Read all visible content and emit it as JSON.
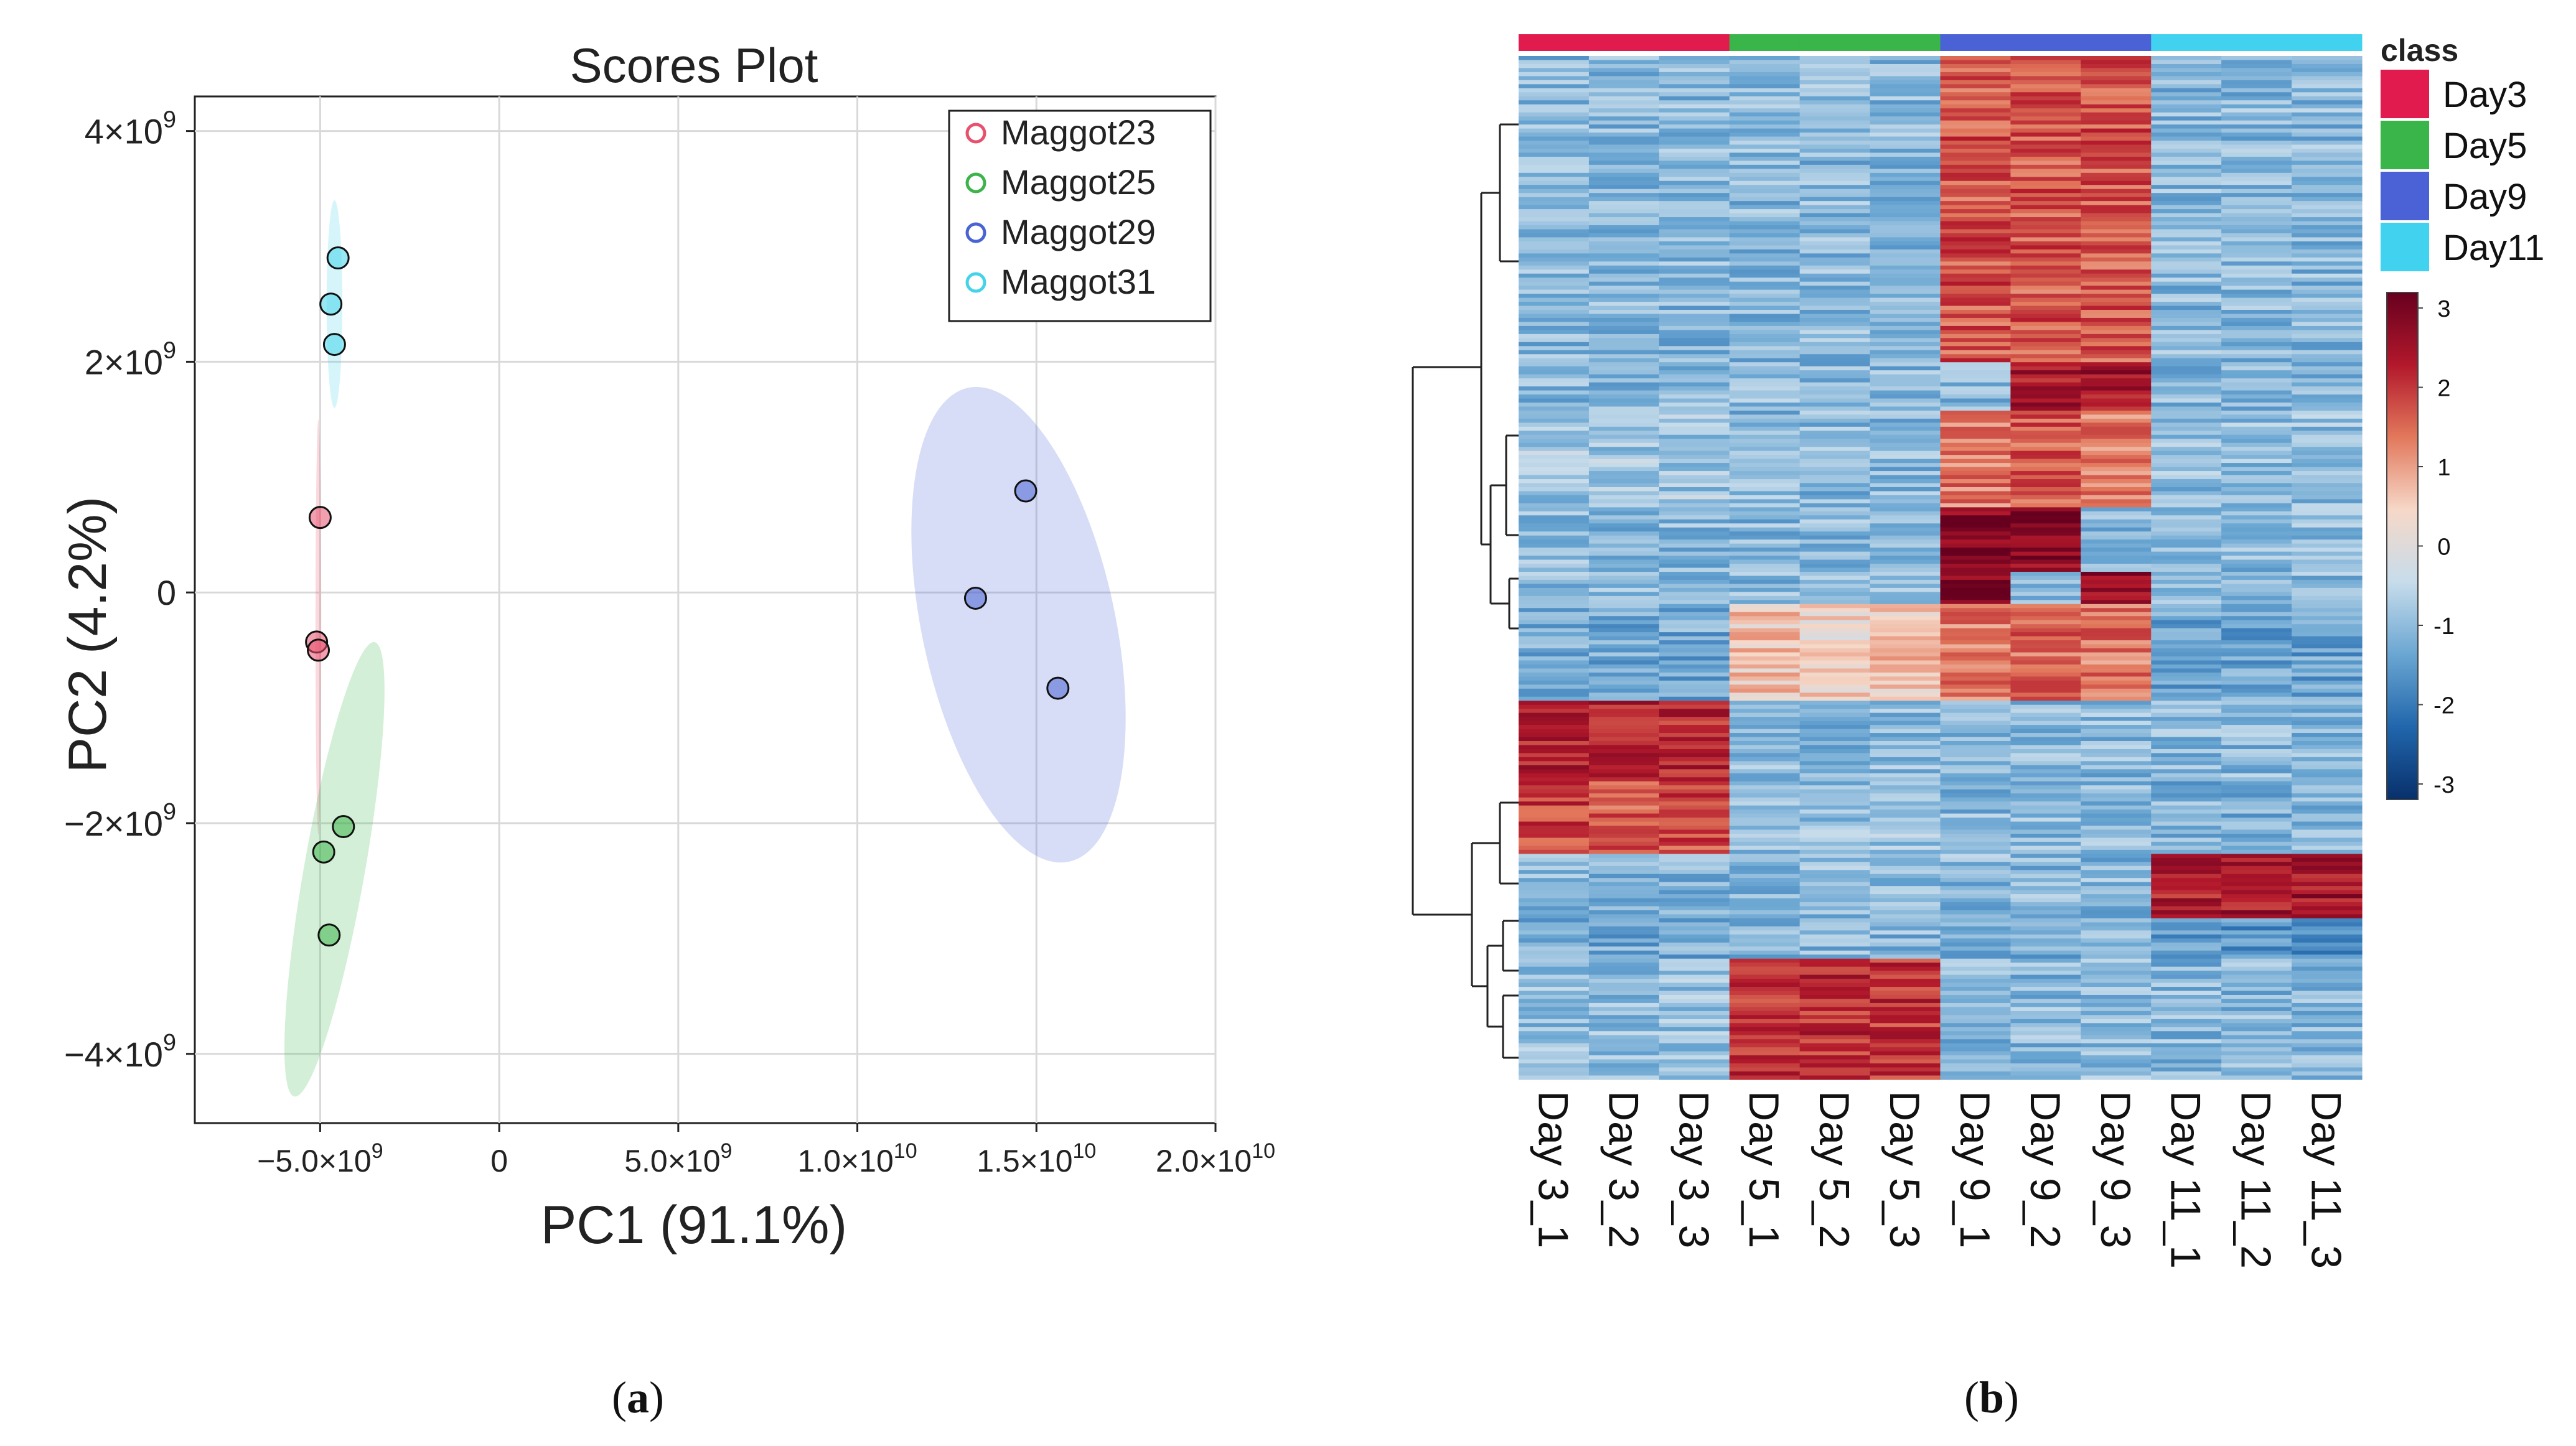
{
  "panel_a": {
    "letter": "a"
  },
  "panel_b": {
    "letter": "b"
  },
  "chart_data": [
    {
      "type": "scatter",
      "title": "Scores Plot",
      "xlabel": "PC1 (91.1%)",
      "ylabel": "PC2 (4.2%)",
      "xlim": [
        -8500000000.0,
        20000000000.0
      ],
      "ylim": [
        -4600000000.0,
        4300000000.0
      ],
      "x_ticks": [
        {
          "value": -5000000000.0,
          "label": "−5.0×10",
          "exp": "9"
        },
        {
          "value": 0,
          "label": "0",
          "exp": ""
        },
        {
          "value": 5000000000.0,
          "label": "5.0×10",
          "exp": "9"
        },
        {
          "value": 10000000000.0,
          "label": "1.0×10",
          "exp": "10"
        },
        {
          "value": 15000000000.0,
          "label": "1.5×10",
          "exp": "10"
        },
        {
          "value": 20000000000.0,
          "label": "2.0×10",
          "exp": "10"
        }
      ],
      "y_ticks": [
        {
          "value": 4000000000.0,
          "label": "4×10",
          "exp": "9"
        },
        {
          "value": 2000000000.0,
          "label": "2×10",
          "exp": "9"
        },
        {
          "value": 0,
          "label": "0",
          "exp": ""
        },
        {
          "value": -2000000000.0,
          "label": "−2×10",
          "exp": "9"
        },
        {
          "value": -4000000000.0,
          "label": "−4×10",
          "exp": "9"
        }
      ],
      "grid": true,
      "legend_position": "top-right",
      "series": [
        {
          "name": "Maggot23",
          "color": "#e8516e",
          "x": [
            -5000000000.0,
            -5100000000.0,
            -5050000000.0
          ],
          "y": [
            650000000.0,
            -430000000.0,
            -500000000.0
          ],
          "ellipse": {
            "cx": -5050000000.0,
            "cy": -300000000.0,
            "rx": 80000000.0,
            "ry": 1800000000.0,
            "angle": 0
          }
        },
        {
          "name": "Maggot25",
          "color": "#3cb44b",
          "x": [
            -4350000000.0,
            -4900000000.0,
            -4750000000.0
          ],
          "y": [
            -2030000000.0,
            -2250000000.0,
            -2970000000.0
          ],
          "ellipse": {
            "cx": -4600000000.0,
            "cy": -2400000000.0,
            "rx": 850000000.0,
            "ry": 2000000000.0,
            "angle": 0
          }
        },
        {
          "name": "Maggot29",
          "color": "#4a63d4",
          "x": [
            14700000000.0,
            13300000000.0,
            15600000000.0
          ],
          "y": [
            880000000.0,
            -50000000.0,
            -830000000.0
          ],
          "ellipse": {
            "cx": 14500000000.0,
            "cy": -280000000.0,
            "rx": 2700000000.0,
            "ry": 2100000000.0,
            "angle": 0
          }
        },
        {
          "name": "Maggot31",
          "color": "#45d3ea",
          "x": [
            -4500000000.0,
            -4700000000.0,
            -4600000000.0
          ],
          "y": [
            2900000000.0,
            2500000000.0,
            2150000000.0
          ],
          "ellipse": {
            "cx": -4600000000.0,
            "cy": 2500000000.0,
            "rx": 220000000.0,
            "ry": 900000000.0,
            "angle": 0
          }
        }
      ]
    },
    {
      "type": "heatmap",
      "columns": [
        "Day 3_1",
        "Day 3_2",
        "Day 3_3",
        "Day 5_1",
        "Day 5_2",
        "Day 5_3",
        "Day 9_1",
        "Day 9_2",
        "Day 9_3",
        "Day 11_1",
        "Day 11_2",
        "Day 11_3"
      ],
      "column_classes": [
        "Day3",
        "Day3",
        "Day3",
        "Day5",
        "Day5",
        "Day5",
        "Day9",
        "Day9",
        "Day9",
        "Day11",
        "Day11",
        "Day11"
      ],
      "class_legend": {
        "title": "class",
        "items": [
          {
            "label": "Day3",
            "color": "#e21b4e"
          },
          {
            "label": "Day5",
            "color": "#39b54a"
          },
          {
            "label": "Day9",
            "color": "#4a62d6"
          },
          {
            "label": "Day11",
            "color": "#40d2ee"
          }
        ]
      },
      "color_scale": {
        "ticks": [
          "3",
          "2",
          "1",
          "0",
          "-1",
          "-2",
          "-3"
        ],
        "min": -3,
        "max": 3,
        "colors": [
          "#08306b",
          "#2166ac",
          "#6aa6d2",
          "#c7dceb",
          "#f6d8c8",
          "#e2785c",
          "#b2182b",
          "#67001f"
        ]
      },
      "row_blocks": [
        {
          "rows": 76,
          "values": [
            -1,
            -1,
            -1,
            -1,
            -1,
            -1,
            1.6,
            1.6,
            1.6,
            -1,
            -1,
            -1
          ]
        },
        {
          "rows": 12,
          "values": [
            -1,
            -1,
            -1,
            -1,
            -1,
            -1,
            -1,
            2.2,
            2.4,
            -1,
            -1,
            -1
          ]
        },
        {
          "rows": 24,
          "values": [
            -0.8,
            -0.8,
            -0.8,
            -1,
            -1,
            -1,
            1.3,
            1.6,
            1.2,
            -0.9,
            -0.9,
            -0.9
          ]
        },
        {
          "rows": 16,
          "values": [
            -1,
            -1,
            -1,
            -1,
            -1,
            -1,
            2.6,
            2.6,
            -1,
            -1,
            -1,
            -1
          ]
        },
        {
          "rows": 8,
          "values": [
            -1,
            -1,
            -1,
            -1,
            -1,
            -1,
            2.8,
            -1,
            2.4,
            -1,
            -1,
            -1
          ]
        },
        {
          "rows": 24,
          "values": [
            -1.2,
            -1.2,
            -1.2,
            0.6,
            0.4,
            0.6,
            1.2,
            1.4,
            1.3,
            -1.3,
            -1.3,
            -1.3
          ]
        },
        {
          "rows": 20,
          "values": [
            2.1,
            2.2,
            2.1,
            -1,
            -1,
            -1,
            -1,
            -1,
            -1,
            -1,
            -1,
            -1
          ]
        },
        {
          "rows": 18,
          "values": [
            1.8,
            1.6,
            1.7,
            -0.9,
            -0.9,
            -0.9,
            -1,
            -1,
            -1,
            -1.1,
            -1.1,
            -1.1
          ]
        },
        {
          "rows": 16,
          "values": [
            -1,
            -1,
            -1,
            -1,
            -1,
            -1,
            -1,
            -1,
            -1,
            2.1,
            2.2,
            2.3
          ]
        },
        {
          "rows": 10,
          "values": [
            -1.2,
            -1.2,
            -1.2,
            -1,
            -1,
            -1,
            -1.1,
            -1.1,
            -1.1,
            -1.5,
            -1.5,
            -1.5
          ]
        },
        {
          "rows": 30,
          "values": [
            -0.9,
            -0.9,
            -0.9,
            1.9,
            2.0,
            1.9,
            -1,
            -1,
            -1,
            -1,
            -1,
            -1
          ]
        }
      ]
    }
  ]
}
